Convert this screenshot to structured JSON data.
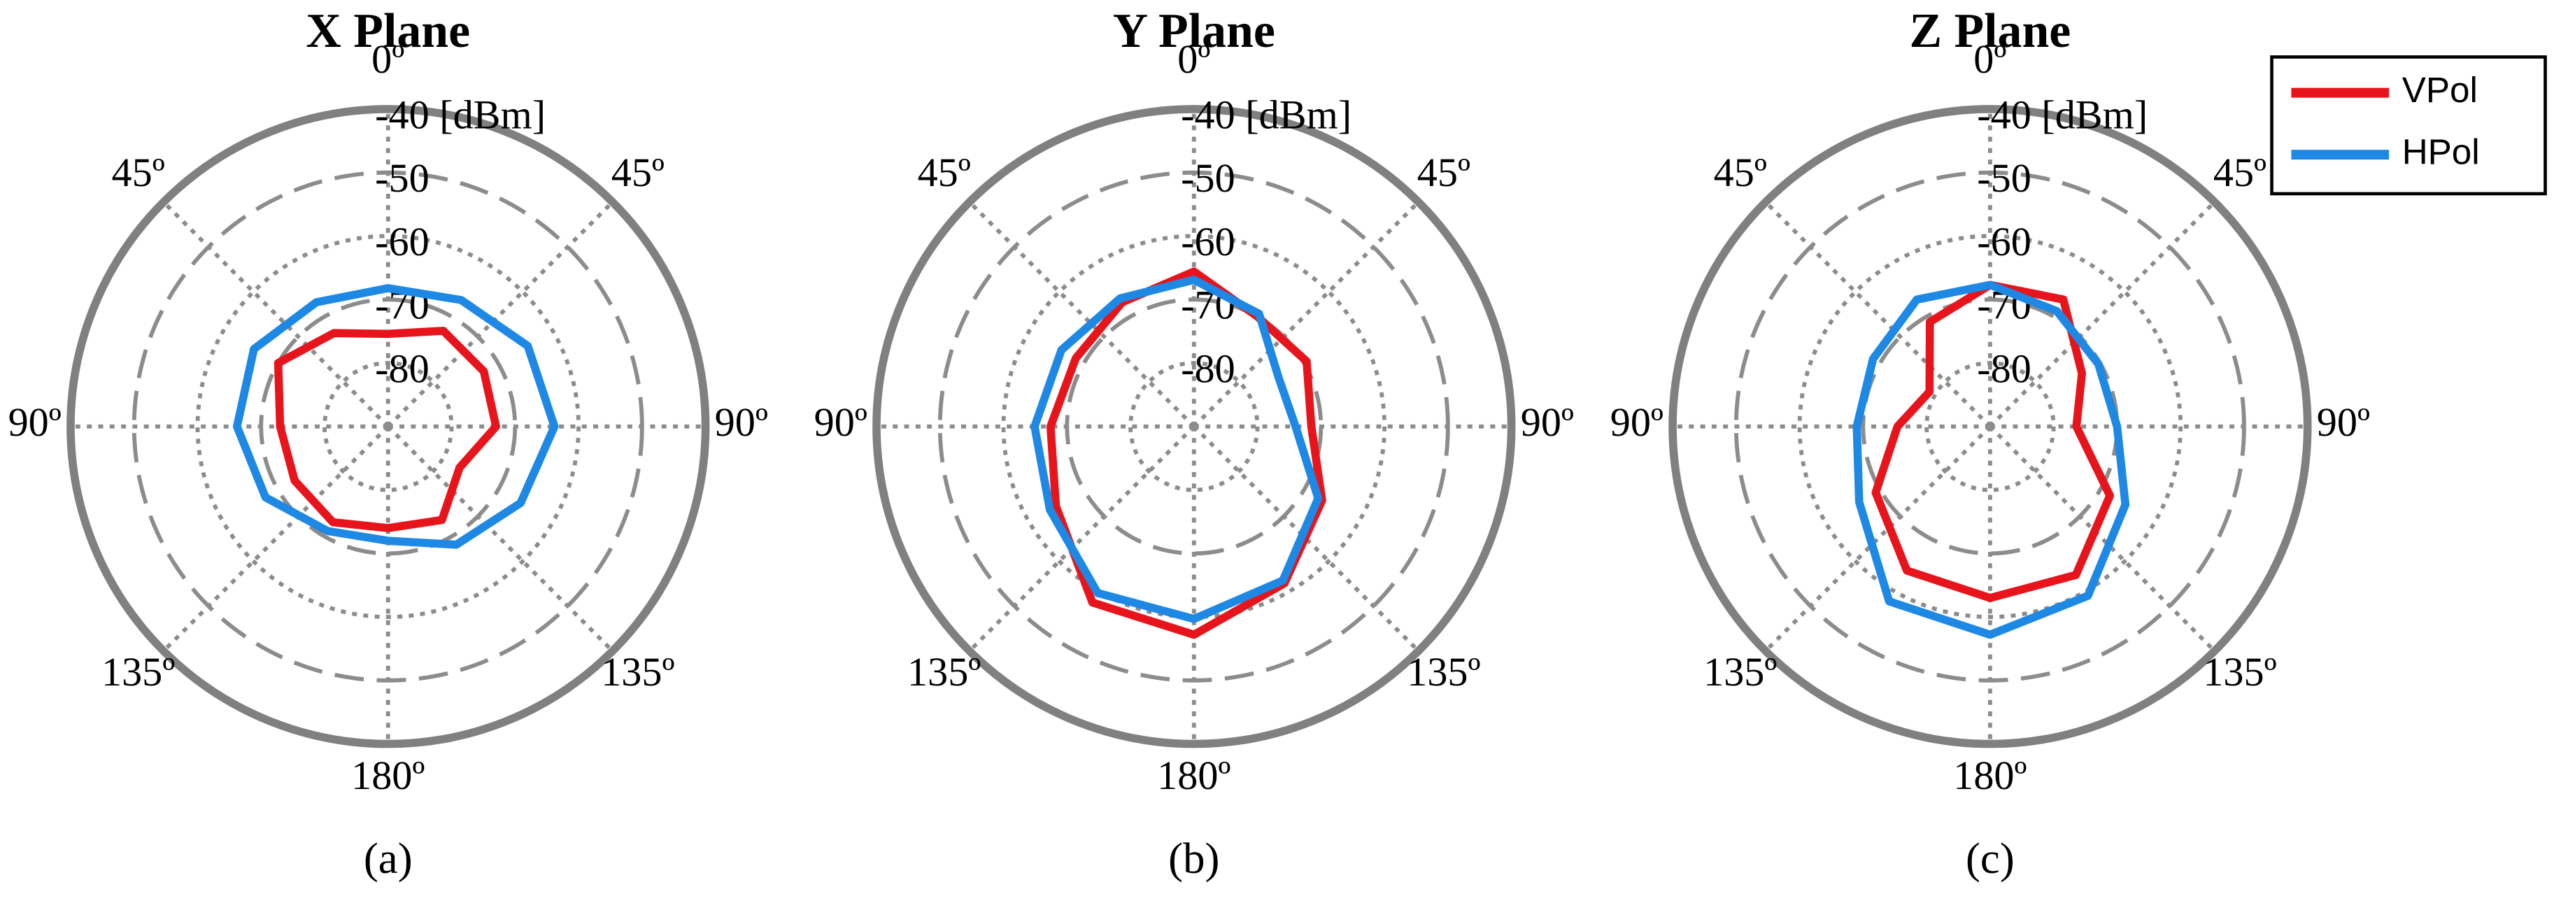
{
  "chart_data": [
    {
      "type": "polar",
      "title": "X Plane",
      "caption": "(a)",
      "theta": [
        0,
        30,
        60,
        90,
        120,
        150,
        180,
        210,
        240,
        270,
        300,
        330
      ],
      "rlim": [
        -90,
        -40
      ],
      "rticks": [
        {
          "value": -40,
          "label": "-40 [dBm]"
        },
        -50,
        -60,
        -70,
        -80
      ],
      "thetaticks": [
        {
          "value": 0,
          "label": "0º"
        },
        {
          "value": 45,
          "label": "45º"
        },
        {
          "value": 90,
          "label": "90º"
        },
        {
          "value": 135,
          "label": "135º"
        },
        {
          "value": 180,
          "label": "180º"
        },
        {
          "value": 225,
          "label": "135º"
        },
        {
          "value": 270,
          "label": "90º"
        },
        {
          "value": 315,
          "label": "45º"
        }
      ],
      "grid": true,
      "series": [
        {
          "name": "VPol",
          "color": "#e8141b",
          "values": [
            -75.4,
            -72.6,
            -72.6,
            -73,
            -77,
            -73,
            -74,
            -72.6,
            -73,
            -73,
            -70,
            -73
          ]
        },
        {
          "name": "HPol",
          "color": "#1e88e5",
          "values": [
            -68.2,
            -67,
            -64.6,
            -63.8,
            -65.9,
            -68.5,
            -72,
            -71,
            -67.7,
            -66.2,
            -65.6,
            -67.4
          ]
        }
      ]
    },
    {
      "type": "polar",
      "title": "Y Plane",
      "caption": "(b)",
      "theta": [
        0,
        30,
        60,
        90,
        120,
        150,
        180,
        210,
        240,
        270,
        300,
        330
      ],
      "rlim": [
        -90,
        -40
      ],
      "rticks": [
        {
          "value": -40,
          "label": "-40 [dBm]"
        },
        -50,
        -60,
        -70,
        -80
      ],
      "thetaticks": [
        {
          "value": 0,
          "label": "0º"
        },
        {
          "value": 45,
          "label": "45º"
        },
        {
          "value": 90,
          "label": "90º"
        },
        {
          "value": 135,
          "label": "135º"
        },
        {
          "value": 180,
          "label": "180º"
        },
        {
          "value": 225,
          "label": "135º"
        },
        {
          "value": 270,
          "label": "90º"
        },
        {
          "value": 315,
          "label": "45º"
        }
      ],
      "grid": true,
      "series": [
        {
          "name": "VPol",
          "color": "#e8141b",
          "values": [
            -65.6,
            -70,
            -69.5,
            -71.5,
            -66.7,
            -61.5,
            -57.2,
            -58,
            -64.9,
            -67.4,
            -68.5,
            -67.4
          ]
        },
        {
          "name": "HPol",
          "color": "#1e88e5",
          "values": [
            -66.9,
            -69.5,
            -74.6,
            -74,
            -67.4,
            -62,
            -59.7,
            -59.7,
            -63.8,
            -64.9,
            -65.9,
            -66.7
          ]
        }
      ]
    },
    {
      "type": "polar",
      "title": "Z Plane",
      "caption": "(c)",
      "theta": [
        0,
        30,
        60,
        90,
        120,
        150,
        180,
        210,
        240,
        270,
        300,
        330
      ],
      "rlim": [
        -90,
        -40
      ],
      "rticks": [
        {
          "value": -40,
          "label": "-40 [dBm]"
        },
        -50,
        -60,
        -70,
        -80
      ],
      "thetaticks": [
        {
          "value": 0,
          "label": "0º"
        },
        {
          "value": 45,
          "label": "45º"
        },
        {
          "value": 90,
          "label": "90º"
        },
        {
          "value": 135,
          "label": "135º"
        },
        {
          "value": 180,
          "label": "180º"
        },
        {
          "value": 225,
          "label": "135º"
        },
        {
          "value": 270,
          "label": "90º"
        },
        {
          "value": 315,
          "label": "45º"
        }
      ],
      "grid": true,
      "legend": "upper right",
      "series": [
        {
          "name": "VPol",
          "color": "#e8141b",
          "values": [
            -67.7,
            -66.9,
            -73.3,
            -76.4,
            -68.2,
            -63,
            -63,
            -63.8,
            -69.2,
            -75.4,
            -79,
            -71
          ]
        },
        {
          "name": "HPol",
          "color": "#1e88e5",
          "values": [
            -67.7,
            -69,
            -70.3,
            -70,
            -65.4,
            -59.2,
            -57.2,
            -58.2,
            -66.2,
            -69,
            -68.7,
            -66.9
          ]
        }
      ]
    }
  ]
}
